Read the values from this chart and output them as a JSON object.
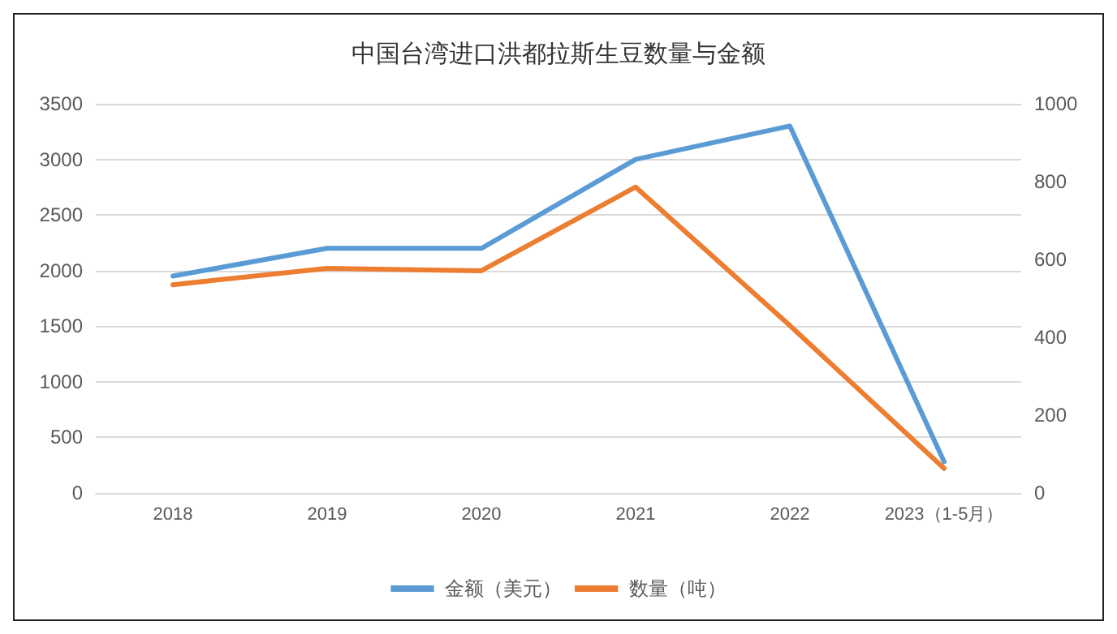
{
  "chart_data": {
    "type": "line",
    "title": "中国台湾进口洪都拉斯生豆数量与金额",
    "categories": [
      "2018",
      "2019",
      "2020",
      "2021",
      "2022",
      "2023（1-5月）"
    ],
    "series": [
      {
        "name": "金额（美元）",
        "color": "#5b9bd5",
        "values": [
          1950,
          2200,
          2200,
          3000,
          3300,
          280
        ]
      },
      {
        "name": "数量（吨）",
        "color": "#ed7d31",
        "axis": "y2",
        "values": [
          535,
          577,
          571,
          786,
          430,
          63
        ]
      }
    ],
    "ylim": [
      0,
      3500
    ],
    "yticks": [
      0,
      500,
      1000,
      1500,
      2000,
      2500,
      3000,
      3500
    ],
    "y2lim": [
      0,
      1000
    ],
    "y2ticks": [
      0,
      200,
      400,
      600,
      800,
      1000
    ],
    "grid": "y",
    "legend": "bottom",
    "marker": "none",
    "line_style": "solid"
  }
}
